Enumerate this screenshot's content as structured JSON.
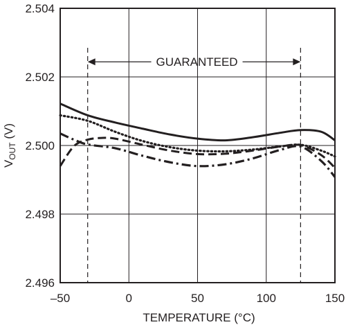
{
  "chart_data": {
    "type": "line",
    "title": "",
    "xlabel": "TEMPERATURE (°C)",
    "ylabel_main": "V",
    "ylabel_sub": "OUT",
    "ylabel_unit": " (V)",
    "xlim": [
      -50,
      150
    ],
    "ylim": [
      2.496,
      2.504
    ],
    "grid": true,
    "x_ticks": [
      -50,
      0,
      50,
      100,
      150
    ],
    "x_tick_labels": [
      "–50",
      "0",
      "50",
      "100",
      "150"
    ],
    "y_ticks": [
      2.496,
      2.498,
      2.5,
      2.502,
      2.504
    ],
    "y_tick_labels": [
      "2.496",
      "2.498",
      "2.500",
      "2.502",
      "2.504"
    ],
    "annotations": [
      {
        "text": "GUARANTEED",
        "range_x": [
          -30,
          125
        ],
        "y": 2.50244,
        "style": "double-arrow"
      }
    ],
    "guide_lines_x": [
      -30,
      125
    ],
    "series": [
      {
        "style": "solid",
        "x": [
          -50,
          -30,
          -10,
          10,
          30,
          50,
          70,
          90,
          110,
          125,
          140,
          150
        ],
        "y": [
          2.50122,
          2.50088,
          2.50067,
          2.50049,
          2.50032,
          2.5002,
          2.50015,
          2.50024,
          2.50037,
          2.50045,
          2.5004,
          2.50015
        ]
      },
      {
        "style": "dotted",
        "x": [
          -50,
          -30,
          -10,
          10,
          30,
          50,
          70,
          90,
          110,
          125,
          140,
          150
        ],
        "y": [
          2.50088,
          2.50072,
          2.5004,
          2.50013,
          2.49995,
          2.49985,
          2.49983,
          2.49988,
          2.49997,
          2.50002,
          2.49985,
          2.49968
        ]
      },
      {
        "style": "dashed",
        "x": [
          -50,
          -40,
          -30,
          -20,
          -10,
          10,
          30,
          50,
          70,
          90,
          110,
          125,
          140,
          150
        ],
        "y": [
          2.4994,
          2.49998,
          2.50017,
          2.50022,
          2.5002,
          2.50002,
          2.49985,
          2.49975,
          2.49976,
          2.49985,
          2.49997,
          2.50001,
          2.49972,
          2.49935
        ]
      },
      {
        "style": "dash-dot",
        "x": [
          -50,
          -40,
          -30,
          -10,
          10,
          30,
          50,
          70,
          90,
          110,
          125,
          140,
          150
        ],
        "y": [
          2.50035,
          2.50017,
          2.50003,
          2.49992,
          2.4997,
          2.49951,
          2.4994,
          2.49945,
          2.49962,
          2.49987,
          2.49997,
          2.49955,
          2.49908
        ]
      }
    ]
  }
}
